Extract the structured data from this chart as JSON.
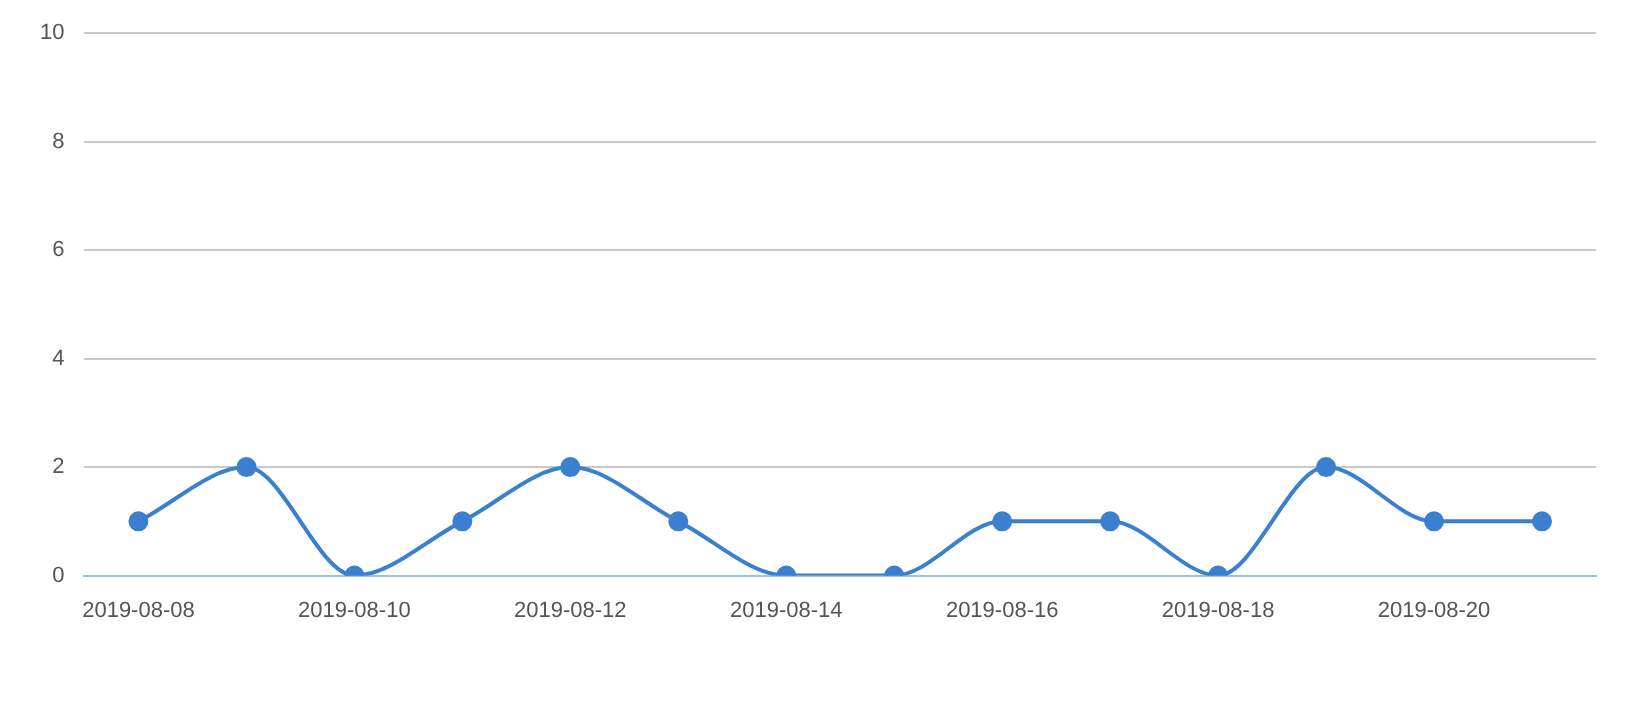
{
  "chart_data": {
    "type": "line",
    "categories": [
      "2019-08-08",
      null,
      "2019-08-10",
      null,
      "2019-08-12",
      null,
      "2019-08-14",
      null,
      "2019-08-16",
      null,
      "2019-08-18",
      null,
      "2019-08-20",
      null
    ],
    "series": [
      {
        "color": "#3a7fd0",
        "values": [
          1,
          2,
          0,
          1,
          2,
          1,
          0,
          0,
          1,
          1,
          0,
          2,
          1,
          1
        ]
      }
    ],
    "ylim": [
      0,
      10
    ],
    "yticks": [
      0,
      2,
      4,
      6,
      8,
      10
    ],
    "grid": "y",
    "legend": false,
    "marker": "circle",
    "line_style": "solid"
  }
}
